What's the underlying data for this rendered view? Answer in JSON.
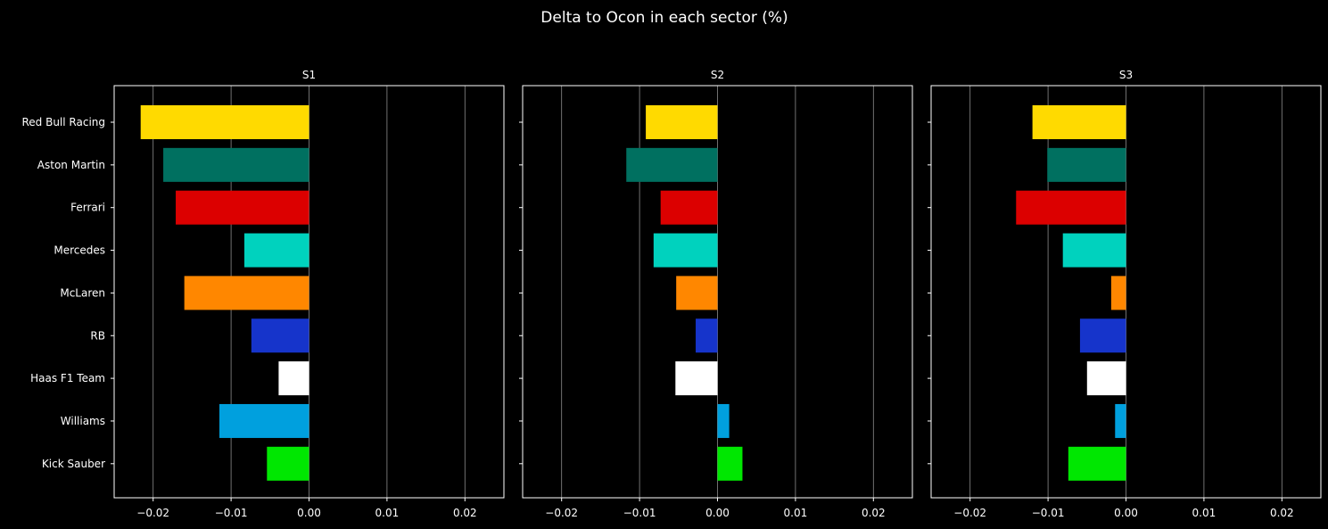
{
  "chart_data": {
    "type": "bar",
    "orientation": "horizontal",
    "title": "Delta to Ocon in each sector (%)",
    "categories": [
      "Red Bull Racing",
      "Aston Martin",
      "Ferrari",
      "Mercedes",
      "McLaren",
      "RB",
      "Haas F1 Team",
      "Williams",
      "Kick Sauber"
    ],
    "colors": [
      "#FFDA00",
      "#007060",
      "#DC0000",
      "#00D2BE",
      "#FF8700",
      "#1634CB",
      "#FFFFFF",
      "#00A0DE",
      "#00E701"
    ],
    "xlim": [
      -0.025,
      0.025
    ],
    "xticks": [
      -0.02,
      -0.01,
      0.0,
      0.01,
      0.02
    ],
    "xtick_labels": [
      "−0.02",
      "−0.01",
      "0.00",
      "0.01",
      "0.02"
    ],
    "grid": "vertical",
    "panels": [
      {
        "title": "S1",
        "values": [
          -0.0216,
          -0.0187,
          -0.0171,
          -0.0083,
          -0.016,
          -0.0074,
          -0.0039,
          -0.0115,
          -0.0054
        ]
      },
      {
        "title": "S2",
        "values": [
          -0.0092,
          -0.0117,
          -0.0073,
          -0.0082,
          -0.0053,
          -0.0028,
          -0.0054,
          0.0015,
          0.0032
        ]
      },
      {
        "title": "S3",
        "values": [
          -0.012,
          -0.0101,
          -0.0141,
          -0.0081,
          -0.0019,
          -0.0059,
          -0.005,
          -0.0014,
          -0.0074
        ]
      }
    ]
  }
}
